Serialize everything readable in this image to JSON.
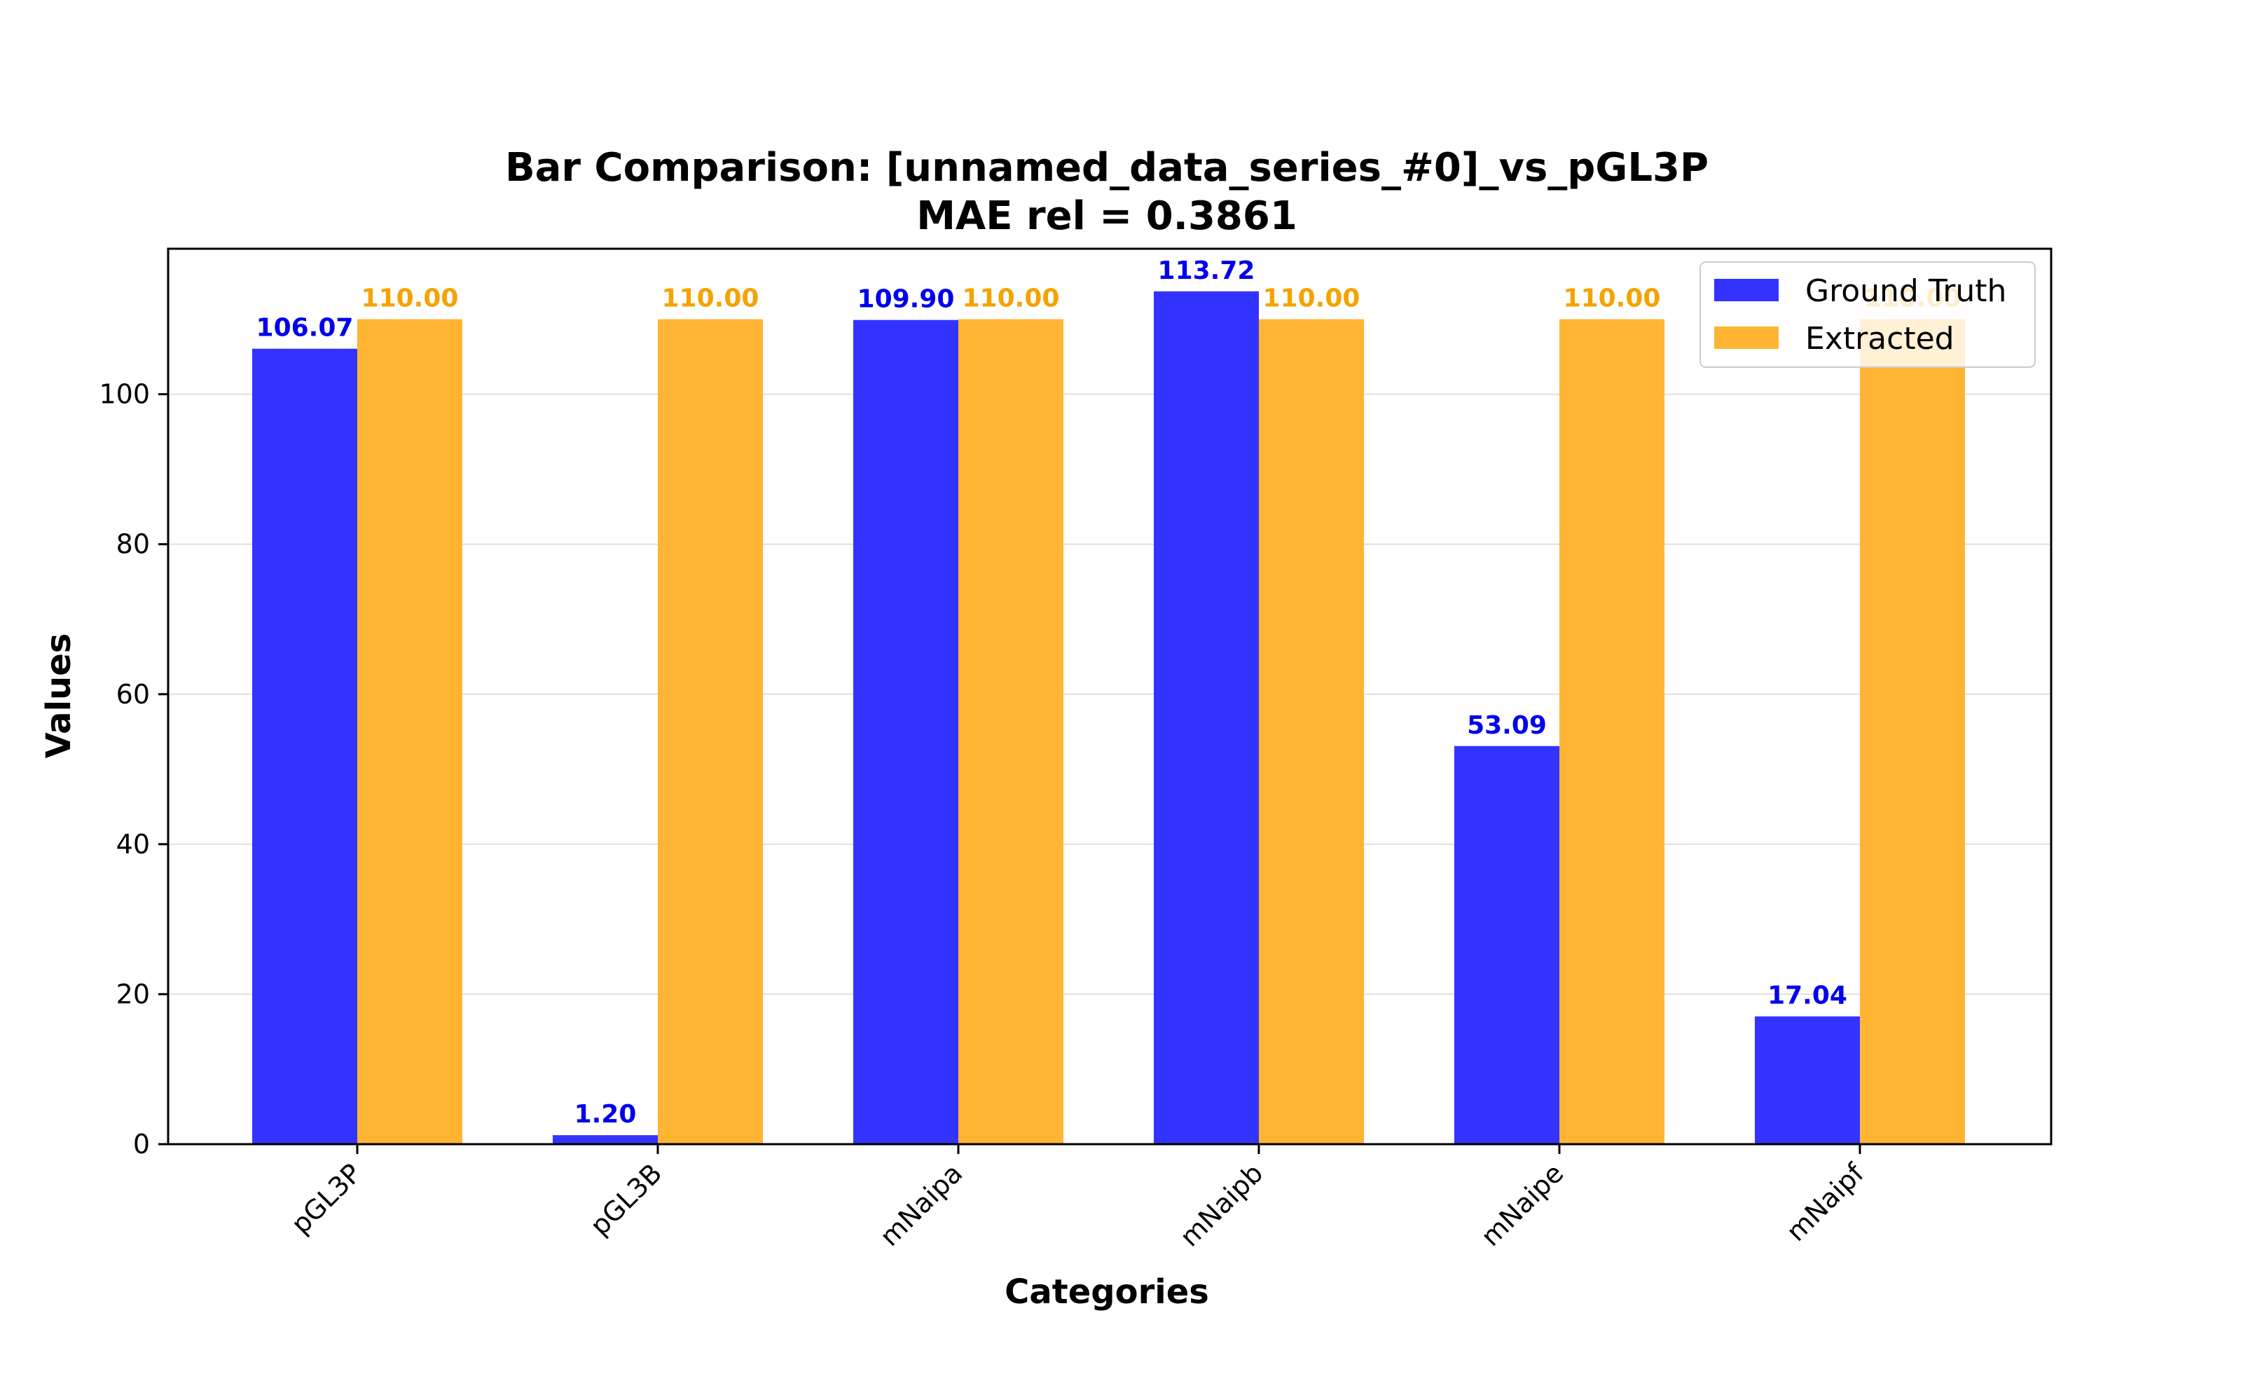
{
  "chart_data": {
    "type": "bar",
    "title": "Bar Comparison: [unnamed_data_series_#0]_vs_pGL3P",
    "subtitle": "MAE rel = 0.3861",
    "xlabel": "Categories",
    "ylabel": "Values",
    "categories": [
      "pGL3P",
      "pGL3B",
      "mNaipa",
      "mNaipb",
      "mNaipe",
      "mNaipf"
    ],
    "series": [
      {
        "name": "Ground Truth",
        "color": "#3333ff",
        "label_color": "#0000ee",
        "values": [
          106.07,
          1.2,
          109.9,
          113.72,
          53.09,
          17.04
        ]
      },
      {
        "name": "Extracted",
        "color": "#ffb533",
        "label_color": "#f5a300",
        "values": [
          110.0,
          110.0,
          110.0,
          110.0,
          110.0,
          110.0
        ]
      }
    ],
    "value_labels": [
      [
        "106.07",
        "1.20",
        "109.90",
        "113.72",
        "53.09",
        "17.04"
      ],
      [
        "110.00",
        "110.00",
        "110.00",
        "110.00",
        "110.00",
        "110.00"
      ]
    ],
    "ylim": [
      0,
      119.4
    ],
    "yticks": [
      0,
      20,
      40,
      60,
      80,
      100
    ],
    "ytick_labels": [
      "0",
      "20",
      "40",
      "60",
      "80",
      "100"
    ],
    "grid": true,
    "legend_position": "top-right"
  }
}
